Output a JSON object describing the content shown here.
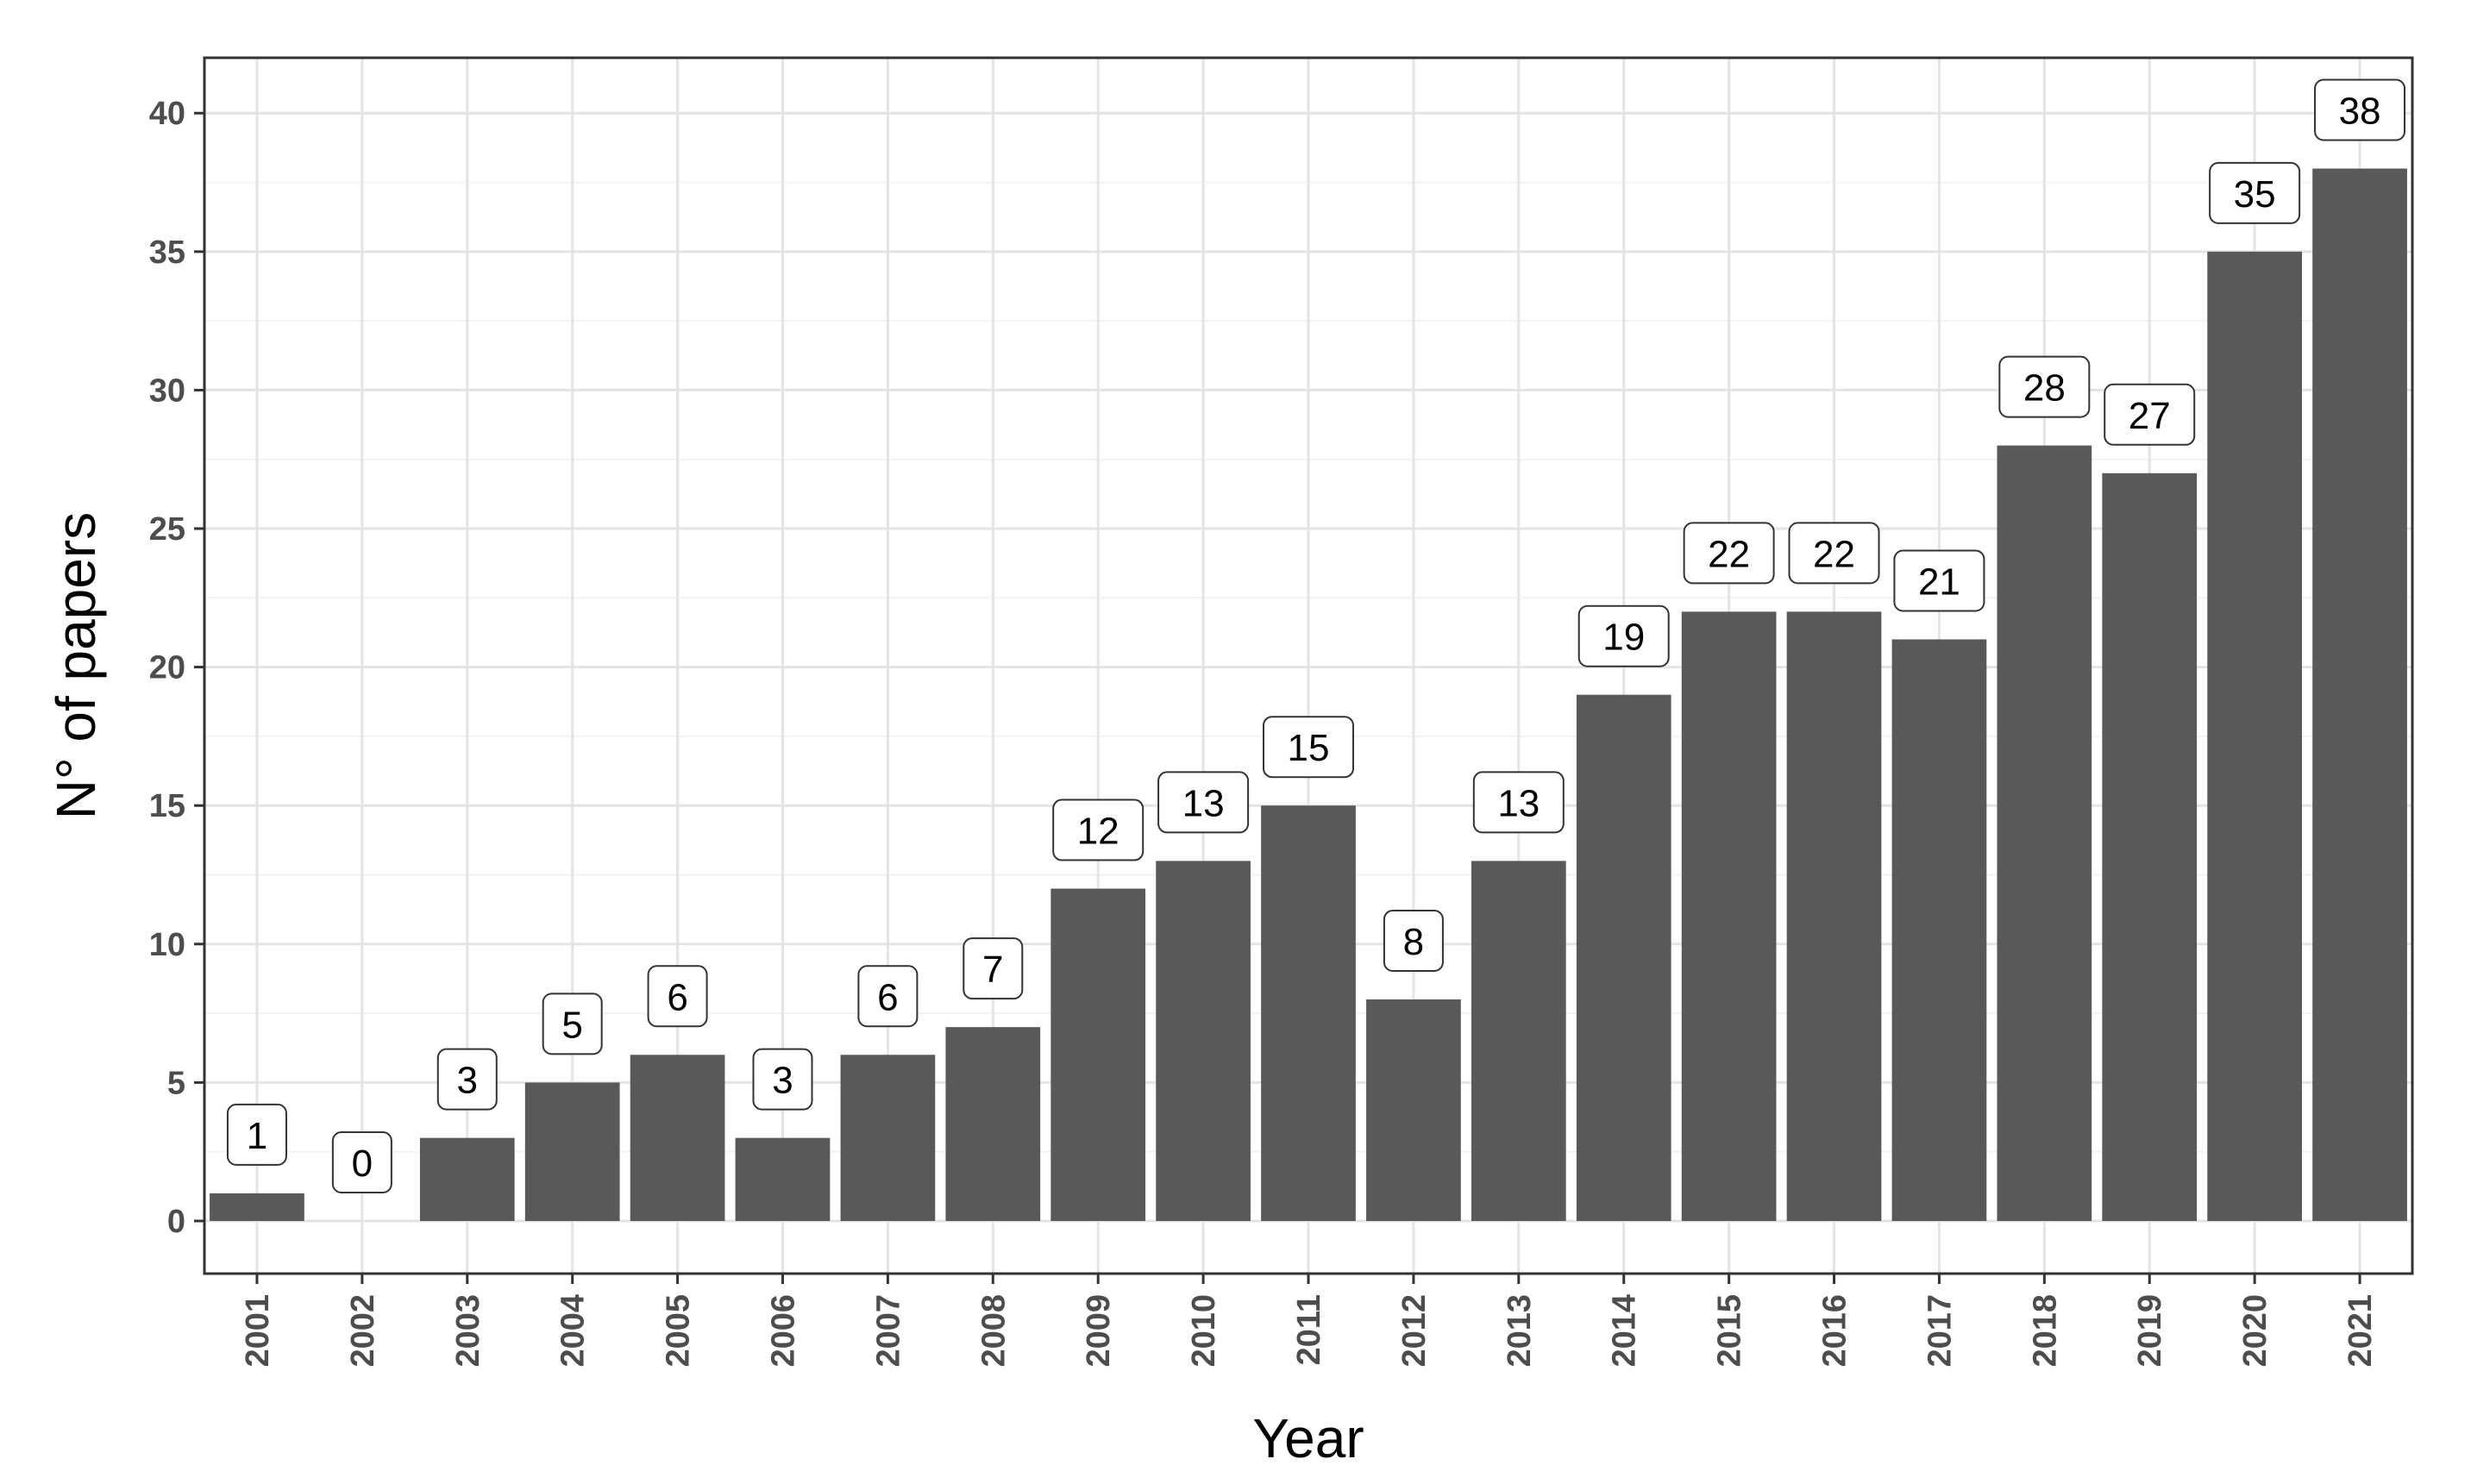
{
  "chart_data": {
    "type": "bar",
    "categories": [
      "2001",
      "2002",
      "2003",
      "2004",
      "2005",
      "2006",
      "2007",
      "2008",
      "2009",
      "2010",
      "2011",
      "2012",
      "2013",
      "2014",
      "2015",
      "2016",
      "2017",
      "2018",
      "2019",
      "2020",
      "2021"
    ],
    "values": [
      1,
      0,
      3,
      5,
      6,
      3,
      6,
      7,
      12,
      13,
      15,
      8,
      13,
      19,
      22,
      22,
      21,
      28,
      27,
      35,
      38
    ],
    "data_labels": [
      "1",
      "0",
      "3",
      "5",
      "6",
      "3",
      "6",
      "7",
      "12",
      "13",
      "15",
      "8",
      "13",
      "19",
      "22",
      "22",
      "21",
      "28",
      "27",
      "35",
      "38"
    ],
    "title": "",
    "xlabel": "Year",
    "ylabel": "N° of papers",
    "ylim": [
      -1.9,
      42
    ],
    "yticks": [
      0,
      5,
      10,
      15,
      20,
      25,
      30,
      35,
      40
    ],
    "ytick_labels": [
      "0",
      "5",
      "10",
      "15",
      "20",
      "25",
      "30",
      "35",
      "40"
    ],
    "grid": true,
    "legend": "none",
    "colors": {
      "bar": "#595959",
      "grid_major": "#e4e4e4",
      "grid_minor": "#f2f2f2",
      "axis_text": "#4d4d4d",
      "panel_border": "#333333",
      "background": "#ffffff"
    }
  }
}
